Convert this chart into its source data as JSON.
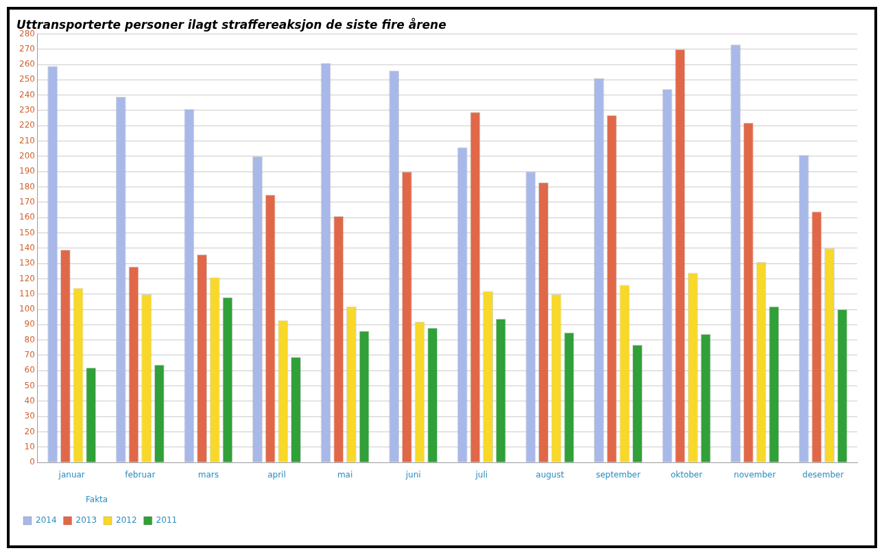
{
  "chart_data": {
    "type": "bar",
    "title": "Uttransporterte personer ilagt straffereaksjon de siste fire årene",
    "legend_title": "Fakta",
    "categories": [
      "januar",
      "februar",
      "mars",
      "april",
      "mai",
      "juni",
      "juli",
      "august",
      "september",
      "oktober",
      "november",
      "desember"
    ],
    "series": [
      {
        "name": "2014",
        "color": "#a8b8e8",
        "values": [
          259,
          239,
          231,
          200,
          261,
          256,
          206,
          190,
          251,
          244,
          273,
          201
        ]
      },
      {
        "name": "2013",
        "color": "#e06848",
        "values": [
          139,
          128,
          136,
          175,
          161,
          190,
          229,
          183,
          227,
          270,
          222,
          164
        ]
      },
      {
        "name": "2012",
        "color": "#f8d828",
        "values": [
          114,
          110,
          121,
          93,
          102,
          92,
          112,
          110,
          116,
          124,
          131,
          140
        ]
      },
      {
        "name": "2011",
        "color": "#30a038",
        "values": [
          62,
          64,
          108,
          69,
          86,
          88,
          94,
          85,
          77,
          84,
          102,
          100
        ]
      }
    ],
    "ylim": [
      0,
      280
    ],
    "yticks": [
      0,
      10,
      20,
      30,
      40,
      50,
      60,
      70,
      80,
      90,
      100,
      110,
      120,
      130,
      140,
      150,
      160,
      170,
      180,
      190,
      200,
      210,
      220,
      230,
      240,
      250,
      260,
      270,
      280
    ],
    "grid": "y",
    "legend": "bottom left"
  }
}
